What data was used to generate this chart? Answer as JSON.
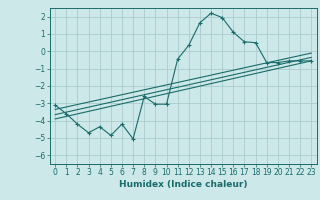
{
  "xlabel": "Humidex (Indice chaleur)",
  "ylabel": "",
  "background_color": "#cce8e8",
  "grid_color": "#aacccc",
  "line_color": "#1a6b6b",
  "xlim": [
    -0.5,
    23.5
  ],
  "ylim": [
    -6.5,
    2.5
  ],
  "xticks": [
    0,
    1,
    2,
    3,
    4,
    5,
    6,
    7,
    8,
    9,
    10,
    11,
    12,
    13,
    14,
    15,
    16,
    17,
    18,
    19,
    20,
    21,
    22,
    23
  ],
  "yticks": [
    -6,
    -5,
    -4,
    -3,
    -2,
    -1,
    0,
    1,
    2
  ],
  "curve_x": [
    0,
    1,
    2,
    3,
    4,
    5,
    6,
    7,
    8,
    9,
    10,
    11,
    12,
    13,
    14,
    15,
    16,
    17,
    18,
    19,
    20,
    21,
    22,
    23
  ],
  "curve_y": [
    -3.1,
    -3.6,
    -4.2,
    -4.7,
    -4.35,
    -4.85,
    -4.2,
    -5.05,
    -2.6,
    -3.05,
    -3.05,
    -0.45,
    0.35,
    1.65,
    2.2,
    1.95,
    1.1,
    0.55,
    0.5,
    -0.65,
    -0.65,
    -0.55,
    -0.55,
    -0.55
  ],
  "line1_x": [
    0,
    23
  ],
  "line1_y": [
    -3.9,
    -0.55
  ],
  "line2_x": [
    0,
    23
  ],
  "line2_y": [
    -3.65,
    -0.35
  ],
  "line3_x": [
    0,
    23
  ],
  "line3_y": [
    -3.35,
    -0.1
  ]
}
